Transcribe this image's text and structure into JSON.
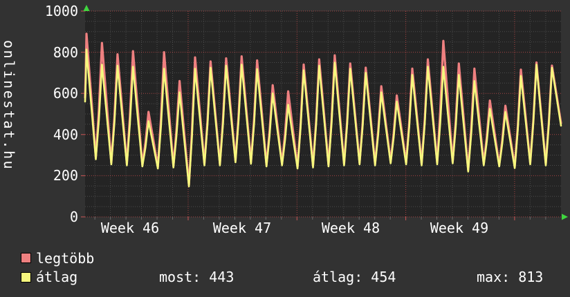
{
  "page": {
    "background": "#323232",
    "plot_background": "#242424",
    "text_color": "#ffffff",
    "grid_minor_color": "#4c4c4c",
    "grid_major_color": "#a84444",
    "axis_arrow_color": "#3fd63f"
  },
  "vertical_label": "onlinestat.hu",
  "legend": {
    "items": [
      {
        "label": "legtöbb",
        "color": "#ee8080"
      },
      {
        "label": "átlag",
        "color": "#f6f77e"
      }
    ]
  },
  "footer_stats": {
    "most": "most: 443",
    "atlag": "átlag: 454",
    "max": "max: 813"
  },
  "chart_data": {
    "type": "line",
    "title": "onlinestat.hu",
    "ylim": [
      0,
      1000
    ],
    "y_tick_labels": [
      "1000",
      "800",
      "600",
      "400",
      "200",
      "0"
    ],
    "x_tick_labels": [
      "Week 46",
      "Week 47",
      "Week 48",
      "Week 49"
    ],
    "grid": {
      "h_minor_step": 50,
      "h_major_step": 200,
      "v_minor": "day",
      "v_major": "week",
      "style": "dotted"
    },
    "legend_position": "bottom-left",
    "x_axis": "days, weeks 46-50, 31 daily cycles shown",
    "stats_for_atlag": {
      "most": 443,
      "atlag": 454,
      "max": 813
    },
    "series": [
      {
        "name": "legtöbb",
        "color": "#ee8080",
        "daily_peaks": [
          890,
          845,
          790,
          805,
          510,
          800,
          660,
          775,
          755,
          770,
          780,
          760,
          640,
          610,
          740,
          765,
          785,
          745,
          725,
          635,
          590,
          720,
          765,
          855,
          745,
          720,
          565,
          540,
          715,
          750,
          735
        ],
        "start_value": 580,
        "end_value": 455
      },
      {
        "name": "átlag",
        "color": "#f6f77e",
        "daily_peaks": [
          813,
          740,
          735,
          730,
          465,
          720,
          605,
          720,
          725,
          735,
          740,
          718,
          600,
          545,
          712,
          735,
          750,
          720,
          700,
          605,
          560,
          690,
          730,
          730,
          690,
          660,
          525,
          510,
          685,
          740,
          725
        ],
        "start_value": 560,
        "end_value": 443
      }
    ],
    "daily_lows": [
      280,
      255,
      250,
      245,
      235,
      240,
      148,
      250,
      250,
      265,
      258,
      245,
      250,
      235,
      240,
      245,
      250,
      255,
      250,
      260,
      255,
      250,
      255,
      260,
      220,
      250,
      245,
      237,
      255,
      250
    ]
  }
}
